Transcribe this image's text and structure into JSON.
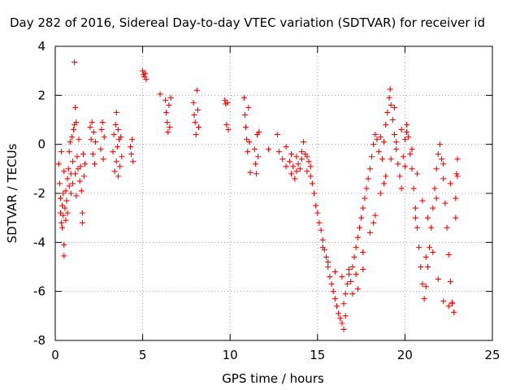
{
  "chart_data": {
    "type": "scatter",
    "title": "Day 282 of 2016, Sidereal Day-to-day VTEC variation (SDTVAR) for receiver id",
    "xlabel": "GPS time / hours",
    "ylabel": "SDTVAR / TECUs",
    "xlim": [
      0,
      25
    ],
    "ylim": [
      -8,
      4
    ],
    "x_ticks": [
      0,
      5,
      10,
      15,
      20,
      25
    ],
    "y_ticks": [
      -8,
      -6,
      -4,
      -2,
      0,
      2,
      4
    ],
    "grid": true,
    "marker": "+",
    "colors": {
      "points": "#ff0000",
      "grid": "#a0a0a0",
      "axes": "#000000"
    },
    "series": [
      {
        "points": [
          [
            0.2,
            -0.8
          ],
          [
            0.25,
            -1.6
          ],
          [
            0.3,
            -2.2
          ],
          [
            0.3,
            -2.8
          ],
          [
            0.35,
            -3.2
          ],
          [
            0.35,
            -0.3
          ],
          [
            0.4,
            -2.5
          ],
          [
            0.4,
            -3.4
          ],
          [
            0.45,
            -2.0
          ],
          [
            0.45,
            -2.9
          ],
          [
            0.5,
            -4.1
          ],
          [
            0.5,
            -4.55
          ],
          [
            0.5,
            -1.1
          ],
          [
            0.55,
            -2.6
          ],
          [
            0.6,
            -3.1
          ],
          [
            0.6,
            -1.9
          ],
          [
            0.65,
            -2.3
          ],
          [
            0.7,
            -1.4
          ],
          [
            0.7,
            -2.8
          ],
          [
            0.75,
            -1.0
          ],
          [
            0.8,
            -0.3
          ],
          [
            0.8,
            -1.7
          ],
          [
            0.85,
            0.1
          ],
          [
            0.9,
            -1.2
          ],
          [
            0.9,
            -2.0
          ],
          [
            0.95,
            0.3
          ],
          [
            1.0,
            -0.7
          ],
          [
            1.0,
            -1.6
          ],
          [
            1.05,
            0.6
          ],
          [
            1.1,
            3.35
          ],
          [
            1.1,
            0.8
          ],
          [
            1.15,
            1.5
          ],
          [
            1.15,
            -1.2
          ],
          [
            1.2,
            0.9
          ],
          [
            1.2,
            -2.1
          ],
          [
            1.25,
            -0.5
          ],
          [
            1.3,
            -1.0
          ],
          [
            1.35,
            0.2
          ],
          [
            1.4,
            -1.5
          ],
          [
            1.45,
            -0.9
          ],
          [
            1.5,
            -1.9
          ],
          [
            1.55,
            -2.8
          ],
          [
            1.55,
            -3.2
          ],
          [
            1.6,
            -0.4
          ],
          [
            1.65,
            -1.3
          ],
          [
            1.7,
            -0.8
          ],
          [
            2.0,
            0.7
          ],
          [
            2.05,
            0.2
          ],
          [
            2.1,
            0.9
          ],
          [
            2.15,
            -0.4
          ],
          [
            2.2,
            0.5
          ],
          [
            2.25,
            -0.8
          ],
          [
            2.3,
            0.1
          ],
          [
            2.6,
            -0.2
          ],
          [
            2.65,
            0.6
          ],
          [
            2.7,
            0.9
          ],
          [
            2.75,
            -0.6
          ],
          [
            2.8,
            0.3
          ],
          [
            3.3,
            -0.3
          ],
          [
            3.35,
            0.4
          ],
          [
            3.4,
            -1.1
          ],
          [
            3.45,
            0.8
          ],
          [
            3.5,
            1.3
          ],
          [
            3.5,
            -0.7
          ],
          [
            3.55,
            -0.1
          ],
          [
            3.6,
            0.6
          ],
          [
            3.6,
            -1.3
          ],
          [
            3.65,
            0.2
          ],
          [
            3.7,
            -0.9
          ],
          [
            3.75,
            0.3
          ],
          [
            3.8,
            -0.5
          ],
          [
            4.3,
            -0.1
          ],
          [
            4.35,
            -0.4
          ],
          [
            4.4,
            0.2
          ],
          [
            4.45,
            -0.7
          ],
          [
            5.0,
            3.0
          ],
          [
            5.05,
            2.85
          ],
          [
            5.1,
            2.75
          ],
          [
            5.15,
            2.9
          ],
          [
            5.2,
            2.65
          ],
          [
            6.0,
            2.05
          ],
          [
            6.3,
            1.8
          ],
          [
            6.35,
            1.3
          ],
          [
            6.4,
            0.9
          ],
          [
            6.45,
            0.5
          ],
          [
            6.5,
            1.6
          ],
          [
            6.55,
            0.7
          ],
          [
            6.6,
            1.9
          ],
          [
            7.9,
            1.7
          ],
          [
            7.95,
            1.2
          ],
          [
            8.0,
            0.9
          ],
          [
            8.05,
            0.4
          ],
          [
            8.1,
            2.2
          ],
          [
            8.15,
            1.4
          ],
          [
            8.2,
            0.7
          ],
          [
            9.7,
            1.8
          ],
          [
            9.75,
            1.65
          ],
          [
            9.8,
            0.8
          ],
          [
            9.85,
            1.7
          ],
          [
            9.9,
            0.6
          ],
          [
            10.8,
            1.9
          ],
          [
            10.85,
            1.2
          ],
          [
            10.9,
            0.7
          ],
          [
            10.95,
            0.2
          ],
          [
            11.0,
            -0.3
          ],
          [
            11.05,
            1.5
          ],
          [
            11.1,
            0.1
          ],
          [
            11.15,
            -1.15
          ],
          [
            11.4,
            -0.2
          ],
          [
            11.45,
            -0.8
          ],
          [
            11.5,
            -1.2
          ],
          [
            11.55,
            0.4
          ],
          [
            11.6,
            -0.5
          ],
          [
            11.65,
            0.5
          ],
          [
            12.2,
            -0.2
          ],
          [
            12.7,
            0.4
          ],
          [
            12.8,
            -0.3
          ],
          [
            13.0,
            -0.6
          ],
          [
            13.2,
            -0.1
          ],
          [
            13.4,
            -0.7
          ],
          [
            13.5,
            -1.2
          ],
          [
            13.6,
            -0.9
          ],
          [
            13.7,
            -1.4
          ],
          [
            13.8,
            -0.5
          ],
          [
            13.9,
            -0.8
          ],
          [
            14.0,
            -1.0
          ],
          [
            14.1,
            -0.6
          ],
          [
            14.2,
            0.1
          ],
          [
            14.3,
            -0.4
          ],
          [
            14.4,
            -1.1
          ],
          [
            14.5,
            -0.7
          ],
          [
            14.6,
            -1.3
          ],
          [
            14.7,
            -1.6
          ],
          [
            14.8,
            -2.0
          ],
          [
            14.9,
            -2.5
          ],
          [
            15.0,
            -2.8
          ],
          [
            15.1,
            -3.2
          ],
          [
            15.2,
            -3.5
          ],
          [
            15.3,
            -3.9
          ],
          [
            15.4,
            -4.3
          ],
          [
            15.5,
            -4.6
          ],
          [
            15.6,
            -5.0
          ],
          [
            15.7,
            -5.4
          ],
          [
            15.8,
            -5.7
          ],
          [
            15.9,
            -6.0
          ],
          [
            16.0,
            -6.3
          ],
          [
            16.1,
            -6.6
          ],
          [
            16.2,
            -6.9
          ],
          [
            16.3,
            -7.1
          ],
          [
            16.4,
            -7.3
          ],
          [
            16.5,
            -7.55
          ],
          [
            16.6,
            -7.0
          ],
          [
            16.5,
            -6.5
          ],
          [
            16.6,
            -6.1
          ],
          [
            16.7,
            -5.7
          ],
          [
            16.8,
            -5.3
          ],
          [
            16.9,
            -5.6
          ],
          [
            17.0,
            -5.0
          ],
          [
            17.1,
            -4.6
          ],
          [
            17.2,
            -4.2
          ],
          [
            17.3,
            -3.8
          ],
          [
            17.4,
            -3.4
          ],
          [
            17.5,
            -3.0
          ],
          [
            17.6,
            -2.6
          ],
          [
            17.7,
            -2.2
          ],
          [
            17.8,
            -1.8
          ],
          [
            17.9,
            -1.4
          ],
          [
            18.0,
            -1.0
          ],
          [
            18.1,
            -0.5
          ],
          [
            18.2,
            0.0
          ],
          [
            18.3,
            0.4
          ],
          [
            18.4,
            0.2
          ],
          [
            18.5,
            -0.3
          ],
          [
            18.6,
            0.3
          ],
          [
            18.7,
            -0.6
          ],
          [
            18.8,
            0.1
          ],
          [
            18.9,
            0.8
          ],
          [
            19.0,
            1.3
          ],
          [
            19.1,
            1.9
          ],
          [
            19.15,
            2.25
          ],
          [
            19.2,
            1.6
          ],
          [
            19.3,
            1.0
          ],
          [
            19.4,
            0.4
          ],
          [
            19.5,
            -0.2
          ],
          [
            19.6,
            -0.8
          ],
          [
            19.7,
            -1.3
          ],
          [
            19.8,
            -1.8
          ],
          [
            19.9,
            -0.5
          ],
          [
            20.0,
            0.2
          ],
          [
            20.1,
            0.8
          ],
          [
            20.2,
            0.3
          ],
          [
            20.3,
            -0.4
          ],
          [
            20.4,
            -1.0
          ],
          [
            20.5,
            -1.8
          ],
          [
            20.6,
            -2.6
          ],
          [
            20.7,
            -3.4
          ],
          [
            20.8,
            -4.2
          ],
          [
            20.9,
            -5.0
          ],
          [
            21.0,
            -5.7
          ],
          [
            21.1,
            -6.3
          ],
          [
            21.2,
            -5.8
          ],
          [
            21.3,
            -5.0
          ],
          [
            21.4,
            -4.2
          ],
          [
            21.5,
            -3.4
          ],
          [
            21.6,
            -2.6
          ],
          [
            21.7,
            -1.8
          ],
          [
            21.8,
            -1.0
          ],
          [
            21.9,
            -0.4
          ],
          [
            22.0,
            0.0
          ],
          [
            22.1,
            -0.6
          ],
          [
            22.2,
            -1.4
          ],
          [
            22.3,
            -2.4
          ],
          [
            22.4,
            -3.4
          ],
          [
            22.5,
            -4.5
          ],
          [
            22.6,
            -5.6
          ],
          [
            22.7,
            -6.5
          ],
          [
            22.8,
            -6.85
          ],
          [
            22.9,
            -3.0
          ],
          [
            22.95,
            -1.2
          ],
          [
            23.0,
            -0.6
          ],
          [
            15.3,
            -4.2
          ],
          [
            15.6,
            -4.8
          ],
          [
            16.0,
            -5.2
          ],
          [
            16.4,
            -5.4
          ],
          [
            16.8,
            -5.1
          ],
          [
            17.2,
            -5.3
          ],
          [
            17.6,
            -4.4
          ],
          [
            18.0,
            -3.6
          ],
          [
            18.3,
            -2.9
          ],
          [
            18.6,
            -2.0
          ],
          [
            18.9,
            -1.3
          ],
          [
            19.2,
            -0.6
          ],
          [
            19.5,
            0.1
          ],
          [
            19.8,
            0.6
          ],
          [
            20.1,
            0.5
          ],
          [
            20.4,
            -0.2
          ],
          [
            20.7,
            -1.2
          ],
          [
            21.0,
            -2.3
          ],
          [
            21.3,
            -3.0
          ],
          [
            21.6,
            -4.4
          ],
          [
            21.9,
            -5.5
          ],
          [
            22.2,
            -6.4
          ],
          [
            22.5,
            -6.6
          ],
          [
            22.7,
            -6.45
          ],
          [
            13.2,
            -0.9
          ],
          [
            13.5,
            -0.4
          ],
          [
            13.8,
            -1.1
          ],
          [
            14.1,
            -0.3
          ],
          [
            14.4,
            -0.5
          ],
          [
            14.6,
            -0.9
          ],
          [
            17.0,
            -6.1
          ],
          [
            17.3,
            -5.9
          ],
          [
            17.6,
            -5.1
          ],
          [
            18.2,
            -3.2
          ],
          [
            18.8,
            -1.6
          ],
          [
            19.4,
            1.5
          ],
          [
            20.0,
            -0.9
          ],
          [
            20.6,
            -3.0
          ],
          [
            21.2,
            -4.6
          ],
          [
            21.8,
            -2.2
          ],
          [
            22.2,
            -0.8
          ],
          [
            22.6,
            -1.6
          ],
          [
            22.9,
            -2.2
          ],
          [
            23.0,
            -1.3
          ]
        ]
      }
    ]
  }
}
